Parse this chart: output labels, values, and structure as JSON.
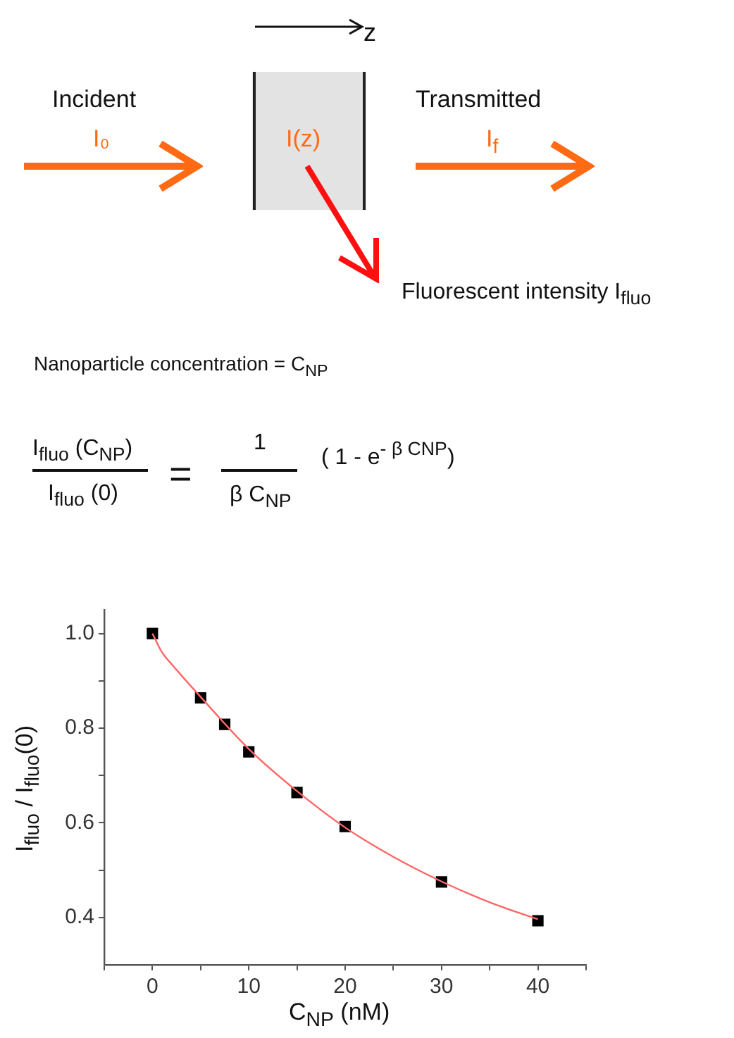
{
  "chart_data": {
    "type": "scatter",
    "xlabel": "C$_{NP}$ (nM)",
    "ylabel": "I$_{fluo}$ / I$_{fluo}$(0)",
    "annotations": [
      "z",
      "Incident",
      "I₀",
      "I(z)",
      "Transmitted",
      "I$_{f}$",
      "Fluorescent intensity I$_{fluo}$",
      "Nanoparticle concentration = C$_{NP}$",
      "I$_{fluo}$ (C$_{NP}$)",
      "I$_{fluo}$ (0)",
      "=",
      "1",
      "β C$_{NP}$",
      "( 1 - e$^{- β CNP}$)"
    ],
    "series": [
      {
        "type": "line",
        "color": "#ff6666",
        "marker": "none",
        "x": [
          0,
          1,
          2,
          5,
          10,
          15,
          20,
          25,
          30,
          35,
          40
        ],
        "values": [
          1.0,
          0.96,
          0.935,
          0.866,
          0.756,
          0.667,
          0.59,
          0.528,
          0.476,
          0.432,
          0.396
        ]
      },
      {
        "color": "#000000",
        "marker": "square",
        "x": [
          0,
          5,
          7.5,
          10,
          15,
          20,
          30,
          40
        ],
        "values": [
          1.0,
          0.864,
          0.808,
          0.75,
          0.664,
          0.592,
          0.475,
          0.393
        ]
      }
    ],
    "xlim": [
      -5,
      45
    ],
    "ylim": [
      0.3,
      1.05
    ],
    "xticks": [
      {
        "value": -5,
        "label": null
      },
      0,
      {
        "value": 5,
        "label": null
      },
      10,
      {
        "value": 15,
        "label": null
      },
      20,
      {
        "value": 25,
        "label": null
      },
      30,
      {
        "value": 35,
        "label": null
      },
      40,
      {
        "value": 45,
        "label": null
      }
    ],
    "yticks": [
      0.4,
      {
        "value": 0.5,
        "label": null
      },
      0.6,
      {
        "value": 0.7,
        "label": null
      },
      0.8,
      {
        "value": 0.9,
        "label": null
      },
      {
        "value": 1.0,
        "label": "1.0"
      }
    ],
    "grid": false,
    "legend": false
  }
}
